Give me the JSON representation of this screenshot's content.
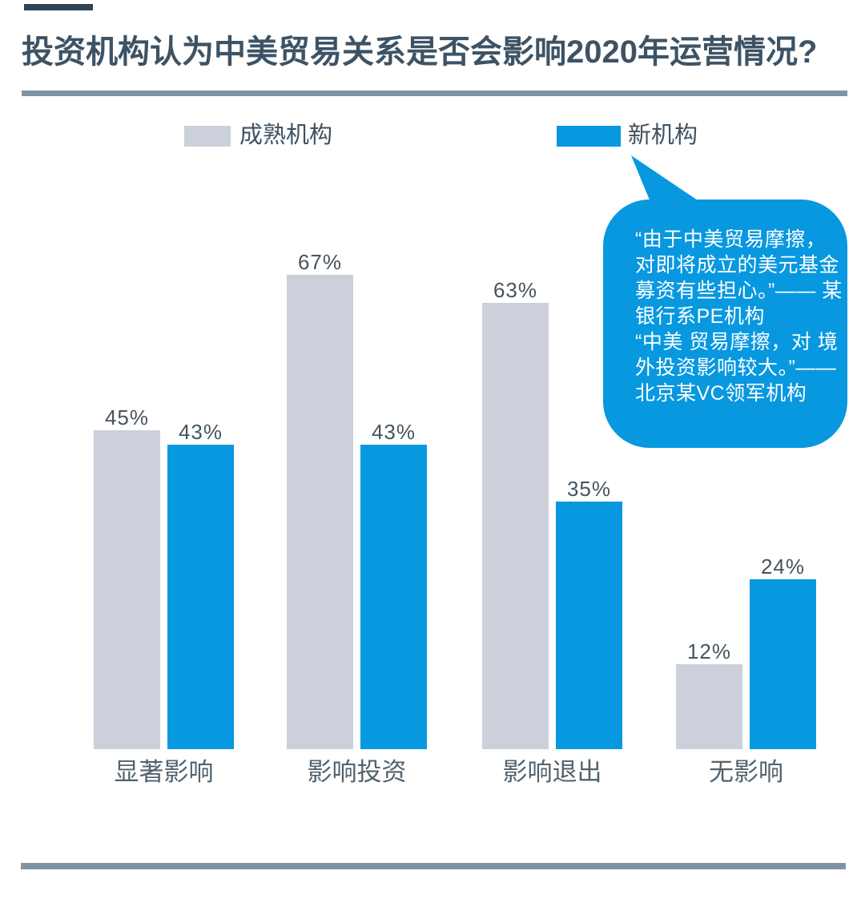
{
  "title": "投资机构认为中美贸易关系是否会影响2020年运营情况?",
  "legend": {
    "mature": "成熟机构",
    "new": "新机构"
  },
  "callout": {
    "text": "“由于中美贸易摩擦，\n对即将成立的美元基金\n募资有些担心。”—— 某\n银行系PE机构\n“中美 贸易摩擦，对 境\n外投资影响较大。”——\n北京某VC领军机构"
  },
  "chart_data": {
    "type": "bar",
    "title": "投资机构认为中美贸易关系是否会影响2020年运营情况?",
    "categories": [
      "显著影响",
      "影响投资",
      "影响退出",
      "无影响"
    ],
    "series": [
      {
        "name": "成熟机构",
        "color": "#cbd0db",
        "values": [
          45,
          67,
          63,
          12
        ],
        "labels": [
          "45%",
          "67%",
          "63%",
          "12%"
        ]
      },
      {
        "name": "新机构",
        "color": "#0898e0",
        "values": [
          43,
          43,
          35,
          24
        ],
        "labels": [
          "43%",
          "43%",
          "35%",
          "24%"
        ]
      }
    ],
    "value_suffix": "%",
    "ylim": [
      0,
      70
    ],
    "grid": false,
    "axis_labels_visible": false,
    "legend_position": "top"
  },
  "colors": {
    "blue": "#0898e0",
    "gray_bar": "#cbd0db",
    "title_text": "#3d5365",
    "divider": "#8093a4",
    "value_label": "#45545f",
    "category_label": "#52626e",
    "callout_text": "#ffffff"
  }
}
